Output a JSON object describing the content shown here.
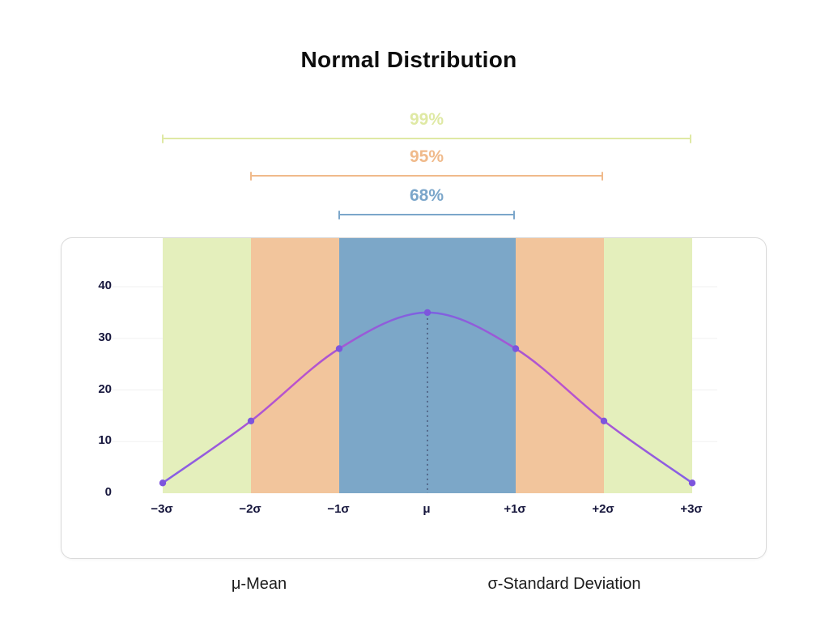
{
  "chart_data": {
    "type": "line",
    "title": "Normal Distribution",
    "x": [
      -3,
      -2,
      -1,
      0,
      1,
      2,
      3
    ],
    "x_tick_labels": [
      "−3σ",
      "−2σ",
      "−1σ",
      "μ",
      "+1σ",
      "+2σ",
      "+3σ"
    ],
    "values": [
      2,
      14,
      28,
      35,
      28,
      14,
      2
    ],
    "y_ticks": [
      0,
      10,
      20,
      30,
      40
    ],
    "ylim": [
      0,
      45
    ],
    "grid": true,
    "bands": [
      {
        "label": "plus-minus-3-sigma",
        "from": -3,
        "to": 3,
        "color": "#e4efbc"
      },
      {
        "label": "plus-minus-2-sigma",
        "from": -2,
        "to": 2,
        "color": "#f2c59c"
      },
      {
        "label": "plus-minus-1-sigma",
        "from": -1,
        "to": 1,
        "color": "#7ca7c8"
      }
    ],
    "brackets": [
      {
        "label": "99%",
        "from": -3,
        "to": 3,
        "color": "#dfe9a4"
      },
      {
        "label": "95%",
        "from": -2,
        "to": 2,
        "color": "#f0ba8b"
      },
      {
        "label": "68%",
        "from": -1,
        "to": 1,
        "color": "#7ba6ca"
      }
    ],
    "mean_line": {
      "x": 0,
      "style": "dotted",
      "color": "#2b2b4e"
    },
    "line_gradient": [
      "#8460e6",
      "#bc52cc",
      "#7a62e2",
      "#bc52cc",
      "#8460e6"
    ],
    "point_color": "#7d55dd",
    "legend": [
      "μ-Mean",
      "σ-Standard Deviation"
    ]
  }
}
